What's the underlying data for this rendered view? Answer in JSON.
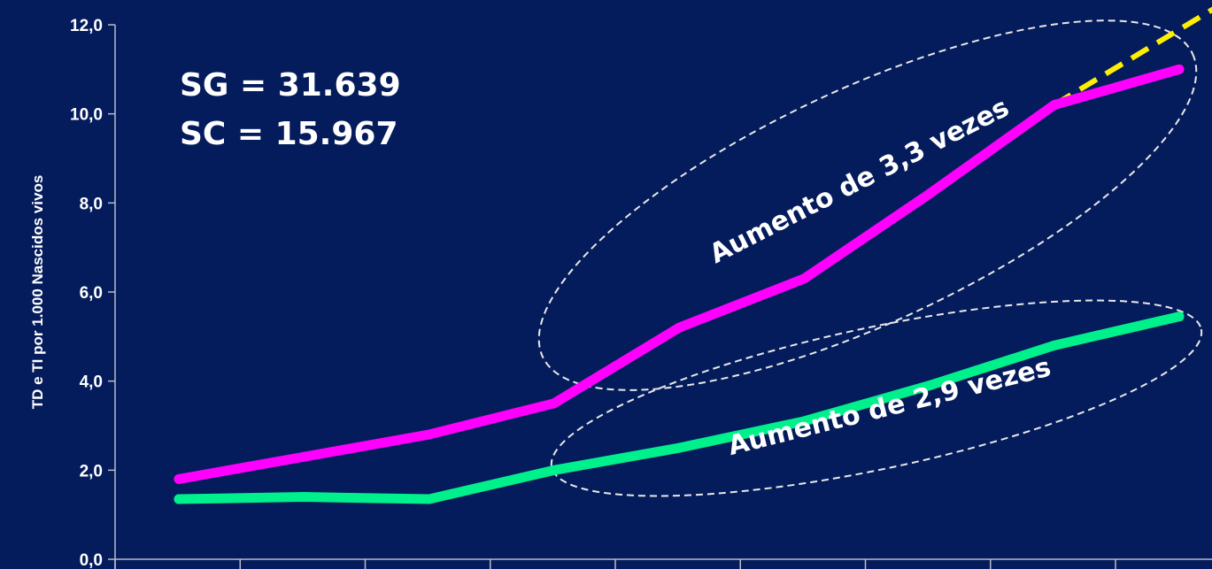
{
  "chart_data": {
    "type": "line",
    "title": "",
    "xlabel": "",
    "ylabel": "TD e TI por 1.000 Nascidos vivos",
    "ylim": [
      0,
      12
    ],
    "yticks": [
      "0,0",
      "2,0",
      "4,0",
      "6,0",
      "8,0",
      "10,0",
      "12,0"
    ],
    "x": [
      1,
      2,
      3,
      4,
      5,
      6,
      7,
      8,
      9
    ],
    "series": [
      {
        "name": "",
        "color": "#ff00ff",
        "values": [
          1.8,
          2.3,
          2.8,
          3.5,
          5.2,
          6.3,
          8.2,
          10.2,
          11.0
        ]
      },
      {
        "name": "",
        "color": "#00f08c",
        "values": [
          1.35,
          1.4,
          1.35,
          2.0,
          2.5,
          3.1,
          3.9,
          4.8,
          5.45
        ]
      }
    ],
    "projection": {
      "color": "#ffee00",
      "from": [
        8,
        10.2
      ],
      "to": [
        9.3,
        12.4
      ]
    },
    "stats": [
      "SG = 31.639",
      "SC = 15.967"
    ],
    "annotations": [
      "Aumento de 3,3 vezes",
      "Aumento de 2,9 vezes"
    ],
    "grid": false,
    "legend": "none"
  }
}
